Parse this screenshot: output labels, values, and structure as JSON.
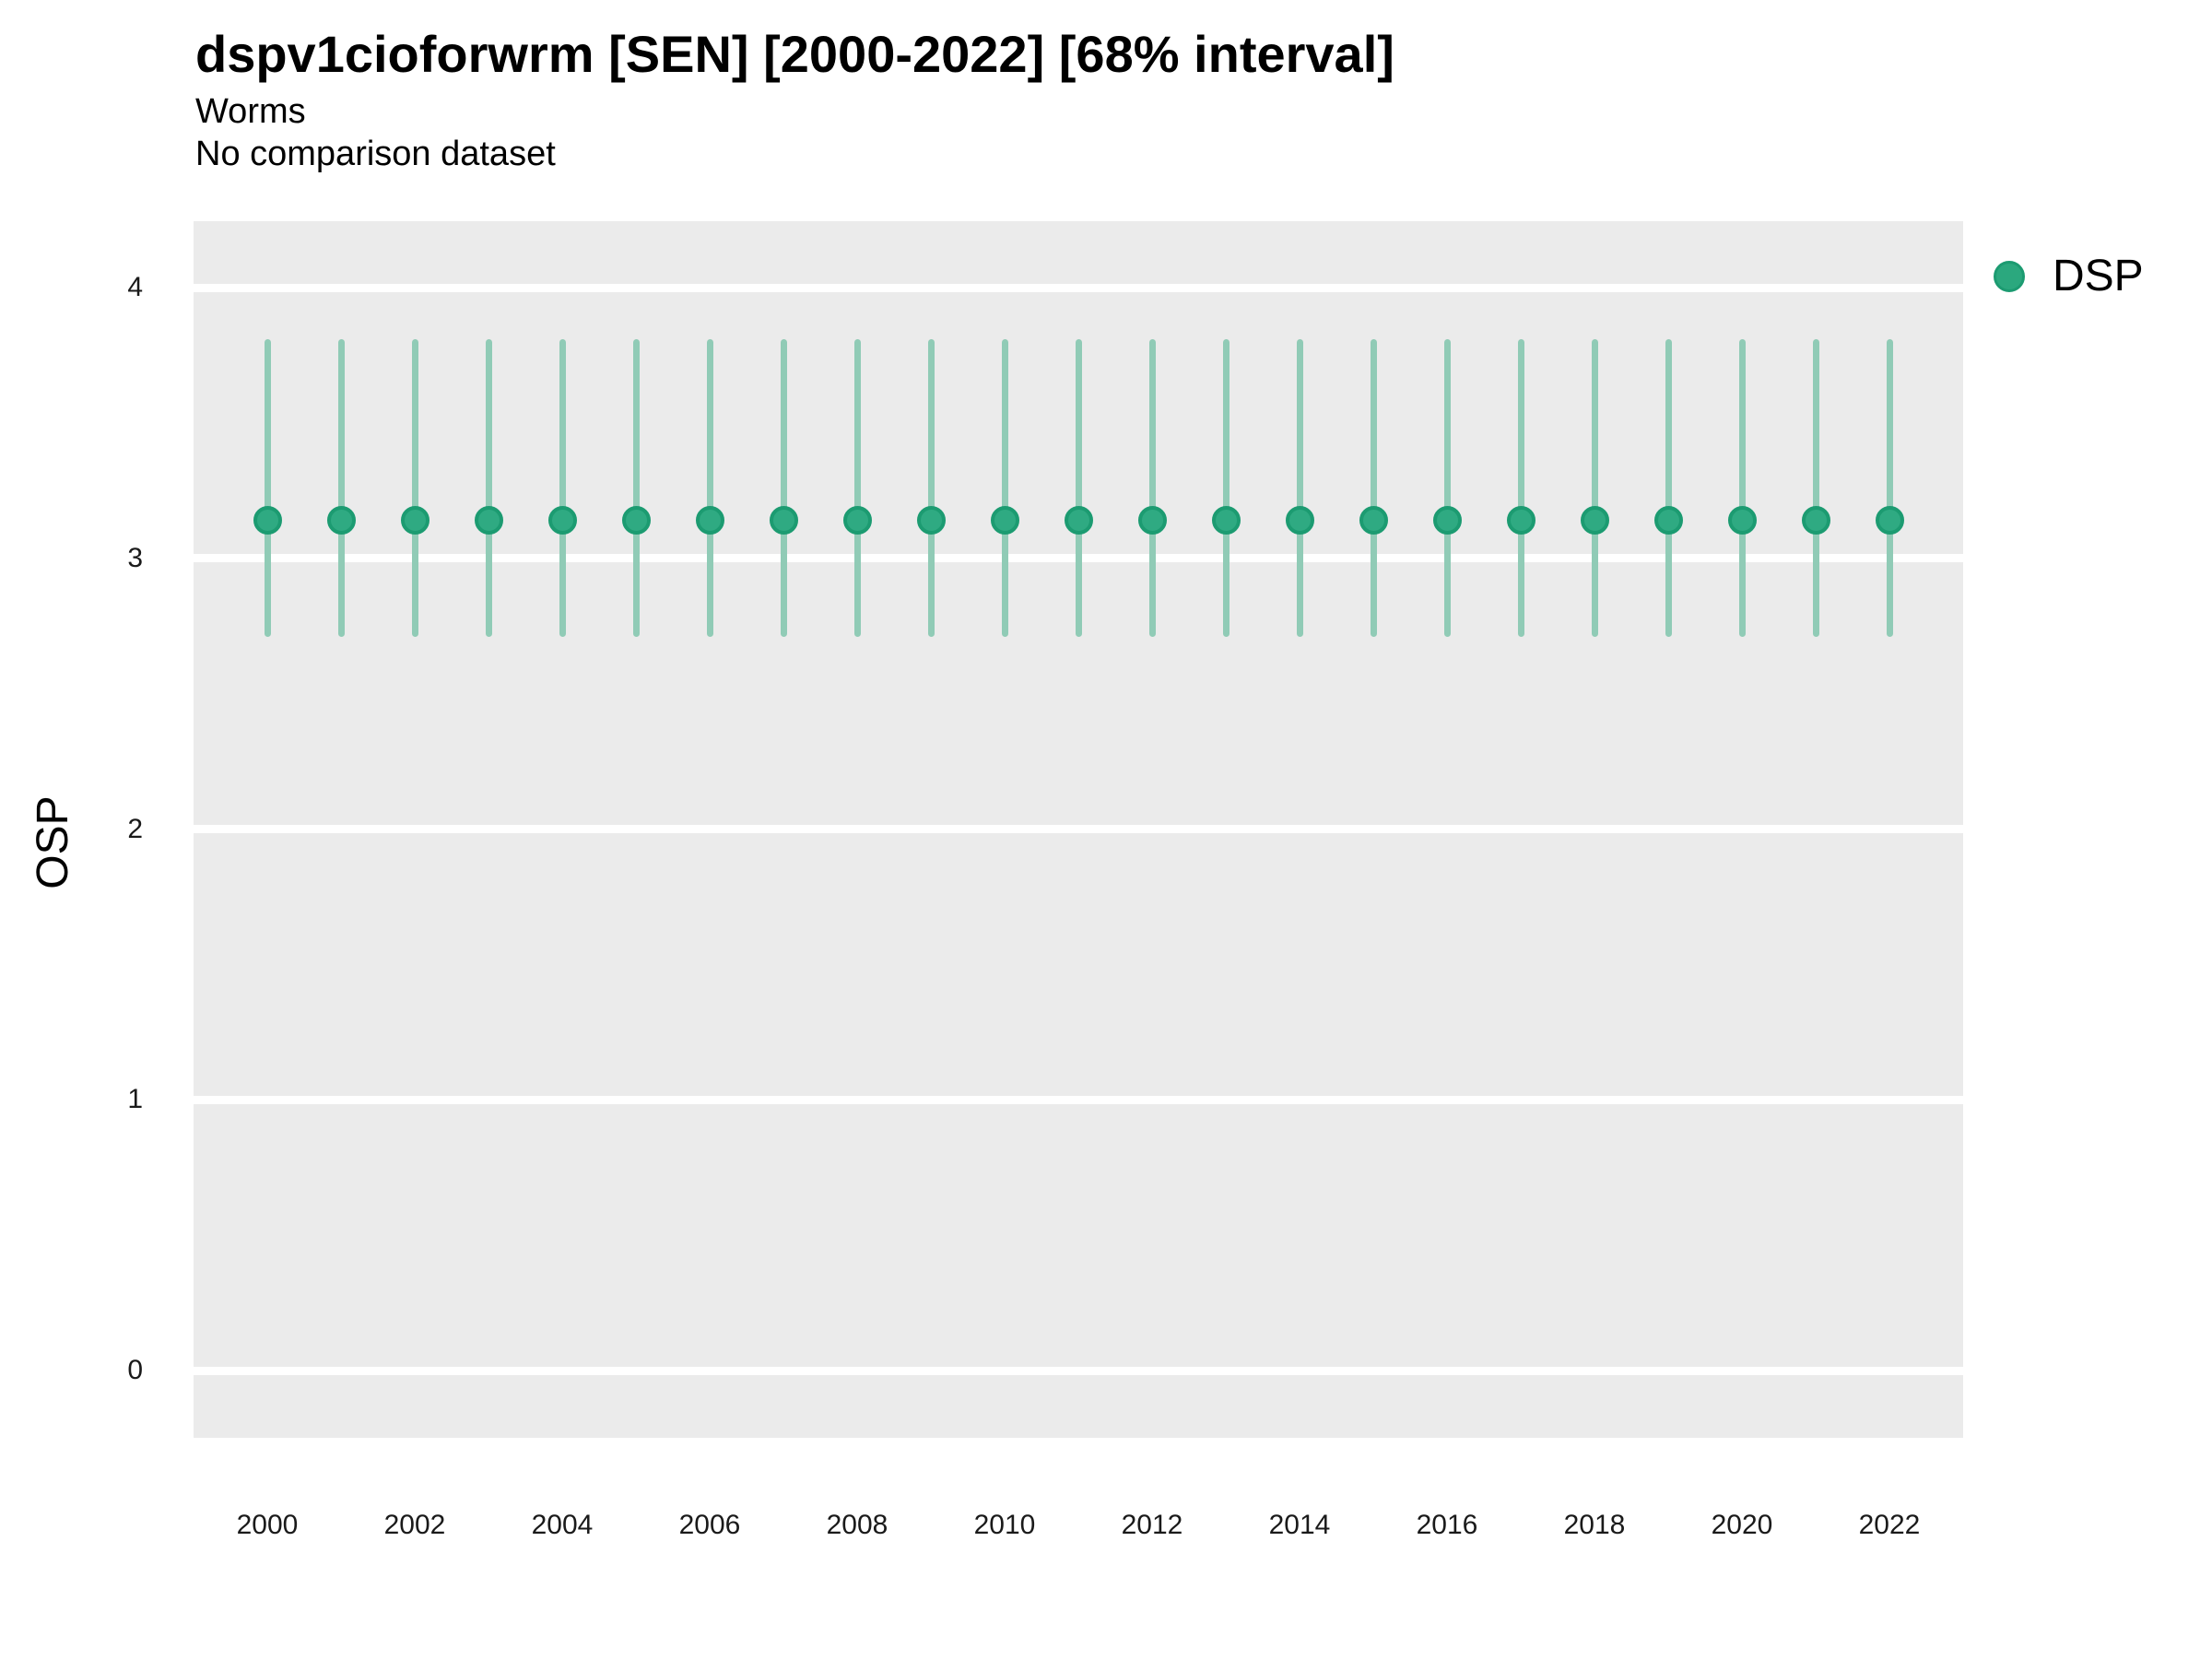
{
  "header": {
    "title": "dspv1cioforwrm [SEN] [2000-2022] [68% interval]",
    "subtitle": "Worms",
    "comparison_note": "No comparison dataset"
  },
  "axes": {
    "y_label": "OSP",
    "x_label": ""
  },
  "legend": {
    "position": "right",
    "items": [
      {
        "label": "DSP",
        "color": "#2BA87E"
      }
    ]
  },
  "chart_data": {
    "type": "pointrange",
    "title": "dspv1cioforwrm [SEN] [2000-2022] [68% interval]",
    "subtitle": "Worms",
    "note": "No comparison dataset",
    "interval_level": "68%",
    "xlabel": "",
    "ylabel": "OSP",
    "x": [
      2000,
      2001,
      2002,
      2003,
      2004,
      2005,
      2006,
      2007,
      2008,
      2009,
      2010,
      2011,
      2012,
      2013,
      2014,
      2015,
      2016,
      2017,
      2018,
      2019,
      2020,
      2021,
      2022
    ],
    "series": [
      {
        "name": "DSP",
        "estimates": [
          3.14,
          3.14,
          3.14,
          3.14,
          3.14,
          3.14,
          3.14,
          3.14,
          3.14,
          3.14,
          3.14,
          3.14,
          3.14,
          3.14,
          3.14,
          3.14,
          3.14,
          3.14,
          3.14,
          3.14,
          3.14,
          3.14,
          3.14
        ],
        "lower": [
          2.71,
          2.71,
          2.71,
          2.71,
          2.71,
          2.71,
          2.71,
          2.71,
          2.71,
          2.71,
          2.71,
          2.71,
          2.71,
          2.71,
          2.71,
          2.71,
          2.71,
          2.71,
          2.71,
          2.71,
          2.71,
          2.71,
          2.71
        ],
        "upper": [
          3.81,
          3.81,
          3.81,
          3.81,
          3.81,
          3.81,
          3.81,
          3.81,
          3.81,
          3.81,
          3.81,
          3.81,
          3.81,
          3.81,
          3.81,
          3.81,
          3.81,
          3.81,
          3.81,
          3.81,
          3.81,
          3.81,
          3.81
        ],
        "point_color": "#2FAA82",
        "point_edge_color": "#1C9B71",
        "interval_color": "#90CBB6"
      }
    ],
    "ylim": [
      -0.25,
      4.25
    ],
    "yticks": [
      0,
      1,
      2,
      3,
      4
    ],
    "xticks": [
      2000,
      2002,
      2004,
      2006,
      2008,
      2010,
      2012,
      2014,
      2016,
      2018,
      2020,
      2022
    ],
    "grid": "horizontal-major-only",
    "grid_color": "#FFFFFF",
    "panel_bg": "#EBEBEB",
    "legend_position": "right"
  }
}
